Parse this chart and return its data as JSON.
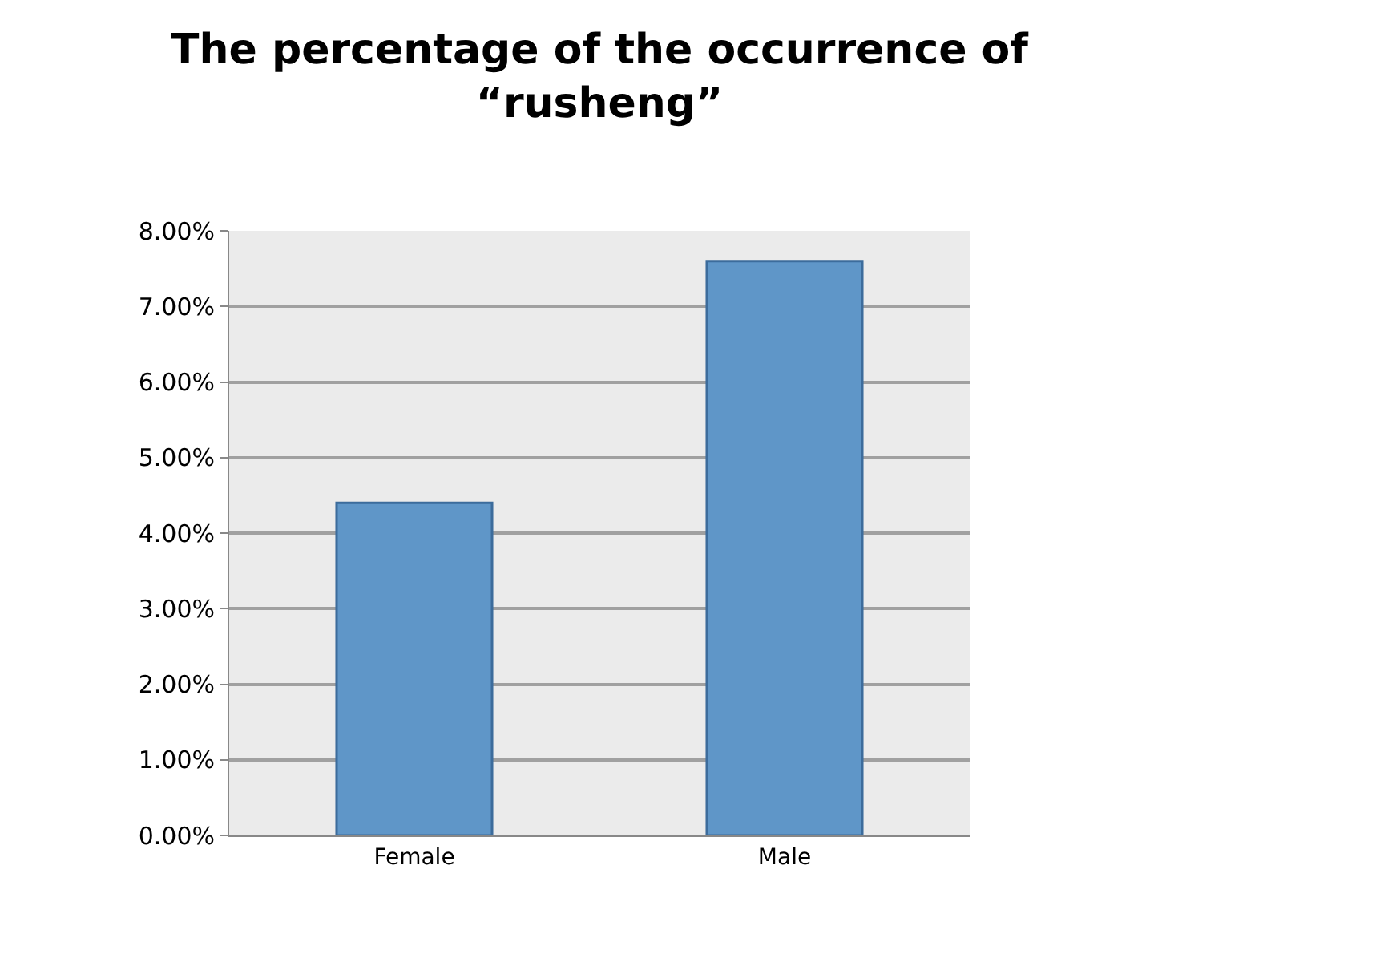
{
  "chart_data": {
    "type": "bar",
    "title": "The percentage of the occurrence of “rusheng”",
    "categories": [
      "Female",
      "Male"
    ],
    "values": [
      4.4,
      7.6
    ],
    "color": "#5f96c8",
    "ylim": [
      0,
      8
    ],
    "yticks": [
      {
        "value": 0,
        "label": "0.00%"
      },
      {
        "value": 1,
        "label": "1.00%"
      },
      {
        "value": 2,
        "label": "2.00%"
      },
      {
        "value": 3,
        "label": "3.00%"
      },
      {
        "value": 4,
        "label": "4.00%"
      },
      {
        "value": 5,
        "label": "5.00%"
      },
      {
        "value": 6,
        "label": "6.00%"
      },
      {
        "value": 7,
        "label": "7.00%"
      },
      {
        "value": 8,
        "label": "8.00%"
      }
    ],
    "grid": "y"
  }
}
